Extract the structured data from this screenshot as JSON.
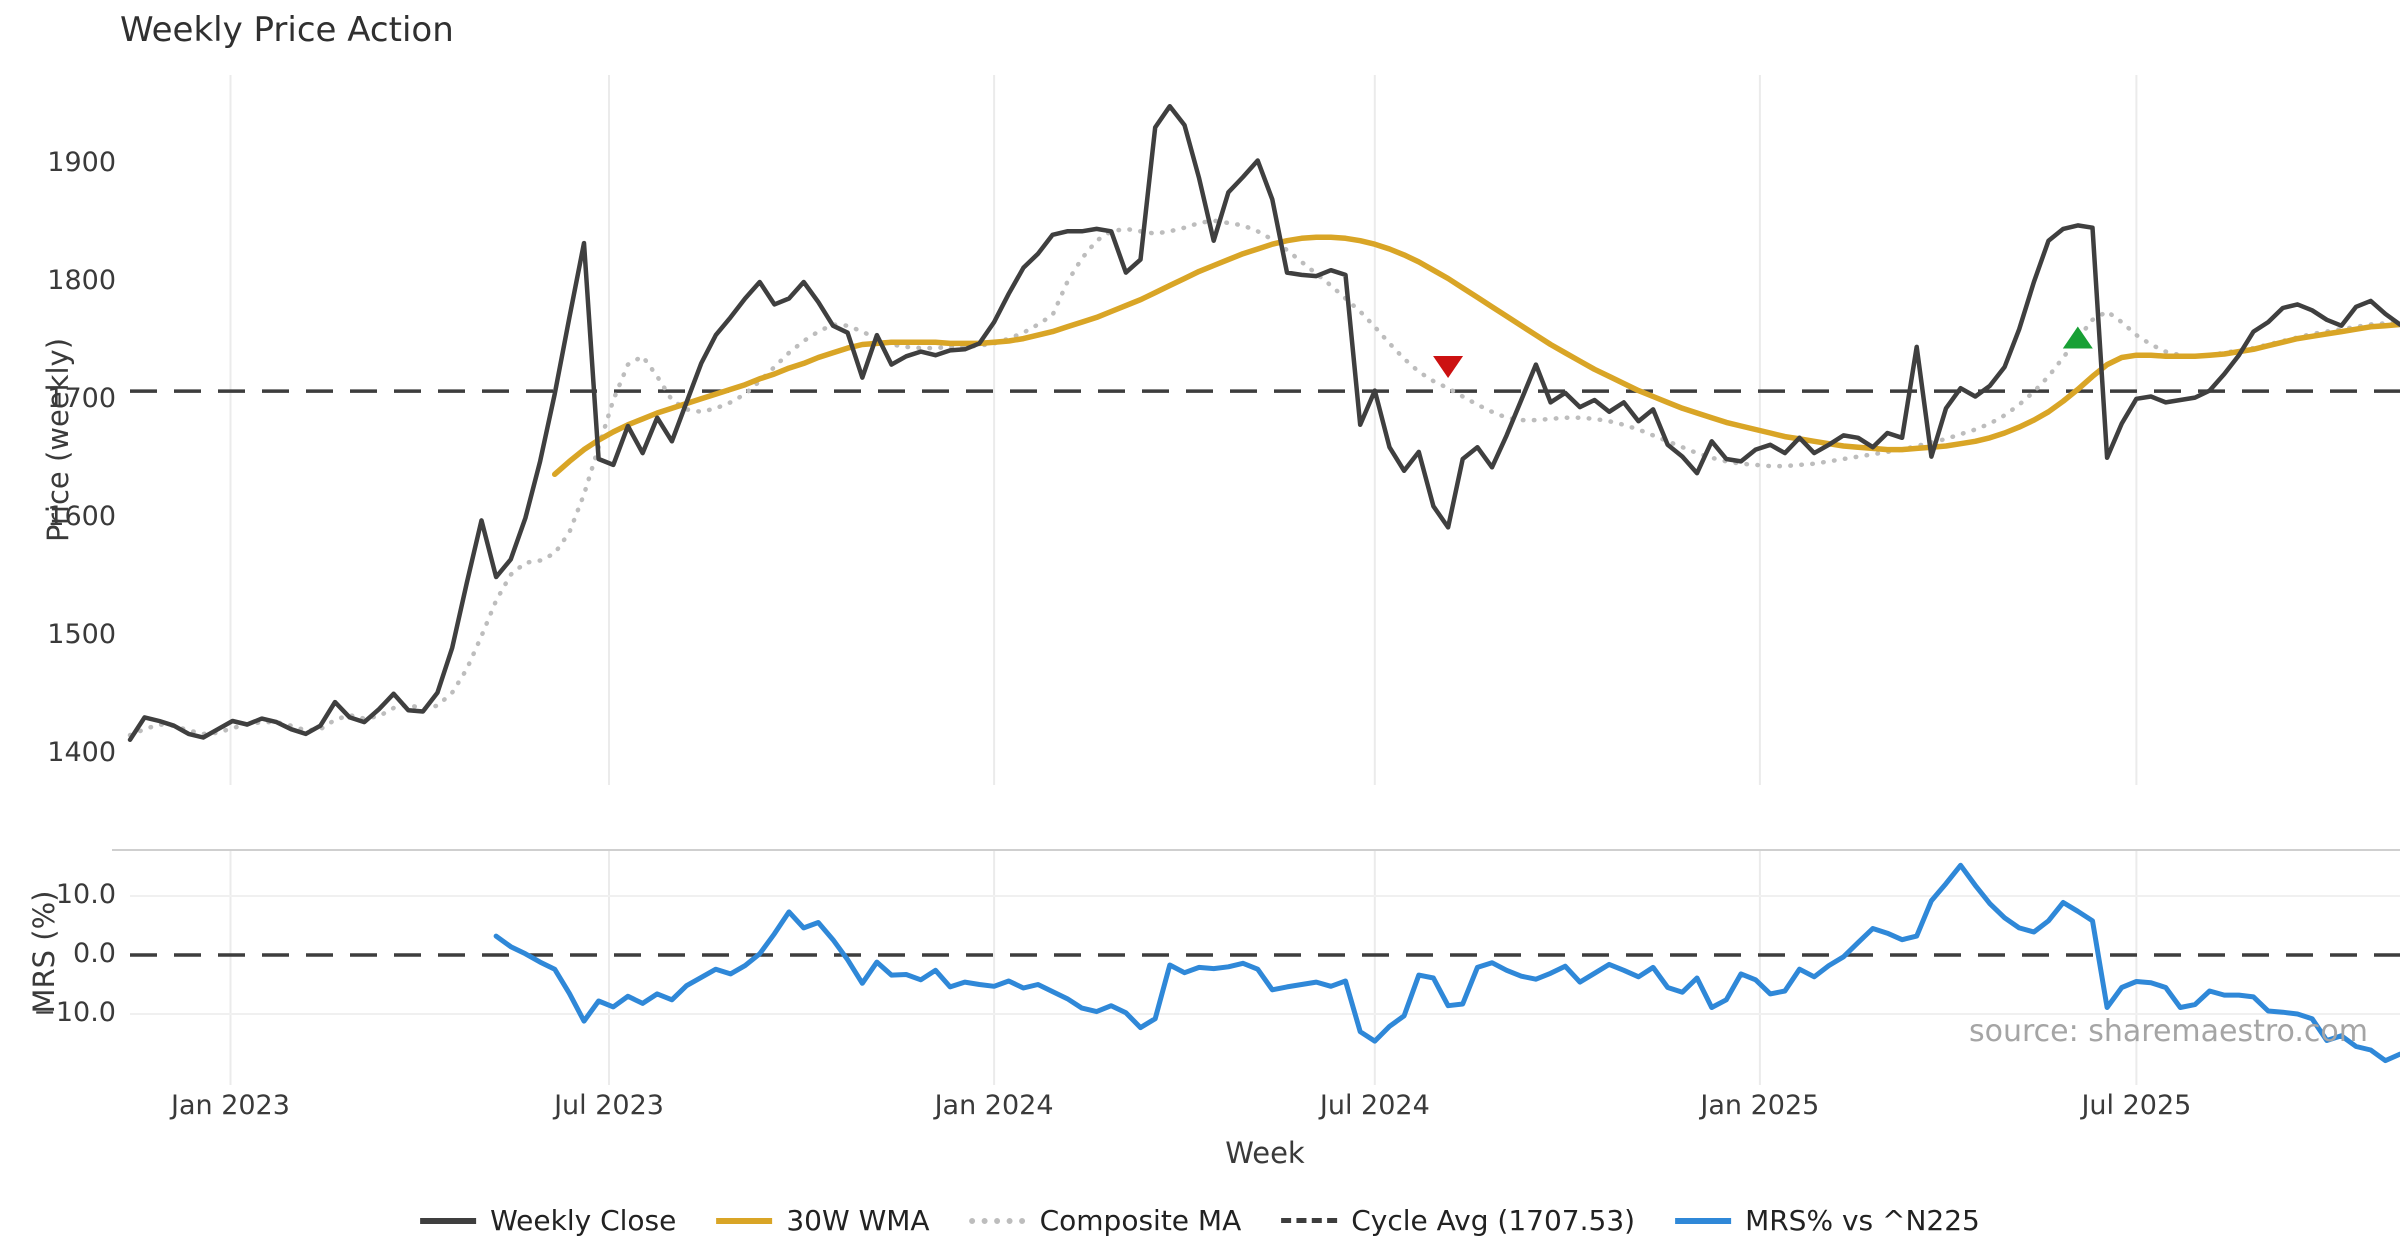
{
  "title": "Weekly Price Action",
  "source": "source: sharemaestro.com",
  "colors": {
    "close": "#3f3f3f",
    "wma": "#d9a526",
    "composite": "#bdbdbd",
    "cycle": "#3d3d3d",
    "mrs": "#2f88d8",
    "marker_down": "#cc1111",
    "marker_up": "#18a035",
    "grid": "#ebebeb",
    "spine": "#cfcfcf",
    "text": "#3a3a3a"
  },
  "legend": [
    {
      "label": "Weekly Close",
      "color": "#3f3f3f",
      "style": "solid"
    },
    {
      "label": "30W WMA",
      "color": "#d9a526",
      "style": "solid"
    },
    {
      "label": "Composite MA",
      "color": "#bdbdbd",
      "style": "dotted"
    },
    {
      "label": "Cycle Avg (1707.53)",
      "color": "#3d3d3d",
      "style": "dashed"
    },
    {
      "label": "MRS% vs ^N225",
      "color": "#2f88d8",
      "style": "solid"
    }
  ],
  "price_axis": {
    "label": "Price (weekly)",
    "ticks": [
      1400,
      1500,
      1600,
      1700,
      1800,
      1900
    ]
  },
  "mrs_axis": {
    "label": "MRS (%)",
    "ticks": [
      {
        "v": 10,
        "label": "10.0"
      },
      {
        "v": 0,
        "label": "0.0"
      },
      {
        "v": -10,
        "label": "−10.0"
      }
    ]
  },
  "x_axis": {
    "label": "Week",
    "ticks": [
      {
        "week": 6.86,
        "label": "Jan 2023"
      },
      {
        "week": 32.71,
        "label": "Jul 2023"
      },
      {
        "week": 59.0,
        "label": "Jan 2024"
      },
      {
        "week": 85.0,
        "label": "Jul 2024"
      },
      {
        "week": 111.29,
        "label": "Jan 2025"
      },
      {
        "week": 137.0,
        "label": "Jul 2025"
      }
    ]
  },
  "chart_data": [
    {
      "type": "line",
      "title": "Weekly Price Action",
      "xlabel": "Week",
      "ylabel": "Price (weekly)",
      "x_unit": "weekly points, Nov 2022 through Nov 2025",
      "weeks_total": 156,
      "ylim": [
        1374,
        1975
      ],
      "y_ticks": [
        1400,
        1500,
        1600,
        1700,
        1800,
        1900
      ],
      "x_tick_labels": [
        "Jan 2023",
        "Jul 2023",
        "Jan 2024",
        "Jul 2024",
        "Jan 2025",
        "Jul 2025"
      ],
      "grid": "vertical-only",
      "cycle_avg": 1707.53,
      "series": [
        {
          "name": "Weekly Close",
          "style": "solid",
          "color": "#3f3f3f",
          "width": 4.5,
          "values": [
            1412,
            1431,
            1428,
            1424,
            1417,
            1414,
            1421,
            1428,
            1425,
            1430,
            1427,
            1421,
            1417,
            1424,
            1444,
            1431,
            1427,
            1438,
            1451,
            1437,
            1436,
            1452,
            1490,
            1545,
            1598,
            1550,
            1565,
            1600,
            1648,
            1705,
            1770,
            1833,
            1650,
            1645,
            1678,
            1655,
            1685,
            1665,
            1698,
            1731,
            1755,
            1770,
            1786,
            1800,
            1781,
            1786,
            1800,
            1783,
            1763,
            1757,
            1719,
            1755,
            1730,
            1737,
            1741,
            1738,
            1742,
            1743,
            1748,
            1766,
            1790,
            1812,
            1824,
            1840,
            1843,
            1843,
            1845,
            1843,
            1808,
            1819,
            1931,
            1949,
            1933,
            1888,
            1835,
            1876,
            1889,
            1903,
            1870,
            1808,
            1806,
            1805,
            1810,
            1806,
            1679,
            1708,
            1660,
            1640,
            1656,
            1610,
            1592,
            1650,
            1660,
            1643,
            1670,
            1700,
            1730,
            1698,
            1706,
            1694,
            1700,
            1690,
            1698,
            1682,
            1692,
            1662,
            1652,
            1638,
            1665,
            1650,
            1648,
            1658,
            1662,
            1655,
            1668,
            1655,
            1662,
            1670,
            1668,
            1660,
            1672,
            1668,
            1745,
            1652,
            1693,
            1710,
            1703,
            1712,
            1728,
            1760,
            1800,
            1835,
            1845,
            1848,
            1846,
            1651,
            1680,
            1701,
            1703,
            1698,
            1700,
            1702,
            1708,
            1722,
            1738,
            1758,
            1766,
            1778,
            1781,
            1776,
            1768,
            1763,
            1779,
            1784,
            1773,
            1764
          ]
        },
        {
          "name": "30W WMA",
          "style": "solid",
          "color": "#d9a526",
          "width": 5.5,
          "values": [
            null,
            null,
            null,
            null,
            null,
            null,
            null,
            null,
            null,
            null,
            null,
            null,
            null,
            null,
            null,
            null,
            null,
            null,
            null,
            null,
            null,
            null,
            null,
            null,
            null,
            null,
            null,
            null,
            null,
            1637,
            1648,
            1658,
            1666,
            1673,
            1679,
            1684,
            1689,
            1693,
            1697,
            1701,
            1705,
            1709,
            1713,
            1718,
            1722,
            1727,
            1731,
            1736,
            1740,
            1744,
            1747,
            1748,
            1749,
            1749,
            1749,
            1749,
            1748,
            1748,
            1748,
            1749,
            1750,
            1752,
            1755,
            1758,
            1762,
            1766,
            1770,
            1775,
            1780,
            1785,
            1791,
            1797,
            1803,
            1809,
            1814,
            1819,
            1824,
            1828,
            1832,
            1835,
            1837,
            1838,
            1838,
            1837,
            1835,
            1832,
            1828,
            1823,
            1817,
            1810,
            1803,
            1795,
            1787,
            1779,
            1771,
            1763,
            1755,
            1747,
            1740,
            1733,
            1726,
            1720,
            1714,
            1708,
            1703,
            1698,
            1693,
            1689,
            1685,
            1681,
            1678,
            1675,
            1672,
            1669,
            1667,
            1665,
            1663,
            1661,
            1660,
            1659,
            1658,
            1658,
            1659,
            1660,
            1661,
            1663,
            1665,
            1668,
            1672,
            1677,
            1683,
            1690,
            1699,
            1709,
            1720,
            1730,
            1736,
            1738,
            1738,
            1737,
            1737,
            1737,
            1738,
            1739,
            1741,
            1743,
            1746,
            1749,
            1752,
            1754,
            1756,
            1758,
            1760,
            1762,
            1763,
            1764
          ]
        },
        {
          "name": "Composite MA",
          "style": "dotted",
          "color": "#bdbdbd",
          "width": 4.5,
          "values": [
            1416,
            1421,
            1425,
            1424,
            1420,
            1417,
            1418,
            1422,
            1425,
            1427,
            1427,
            1424,
            1420,
            1421,
            1429,
            1433,
            1430,
            1432,
            1439,
            1442,
            1438,
            1441,
            1452,
            1472,
            1500,
            1530,
            1552,
            1562,
            1564,
            1570,
            1588,
            1620,
            1660,
            1700,
            1730,
            1737,
            1720,
            1700,
            1692,
            1690,
            1693,
            1698,
            1705,
            1716,
            1728,
            1740,
            1750,
            1758,
            1764,
            1763,
            1758,
            1752,
            1747,
            1745,
            1744,
            1744,
            1745,
            1745,
            1746,
            1748,
            1752,
            1757,
            1764,
            1772,
            1800,
            1820,
            1835,
            1843,
            1845,
            1843,
            1841,
            1843,
            1846,
            1850,
            1852,
            1850,
            1848,
            1843,
            1836,
            1827,
            1817,
            1807,
            1797,
            1786,
            1775,
            1762,
            1748,
            1735,
            1724,
            1716,
            1710,
            1703,
            1696,
            1690,
            1685,
            1683,
            1683,
            1684,
            1685,
            1685,
            1684,
            1682,
            1679,
            1675,
            1670,
            1665,
            1660,
            1655,
            1651,
            1648,
            1646,
            1645,
            1644,
            1644,
            1645,
            1646,
            1648,
            1650,
            1652,
            1654,
            1656,
            1658,
            1661,
            1664,
            1667,
            1671,
            1675,
            1680,
            1687,
            1696,
            1707,
            1720,
            1736,
            1752,
            1768,
            1775,
            1766,
            1755,
            1747,
            1741,
            1738,
            1737,
            1738,
            1740,
            1742,
            1744,
            1747,
            1750,
            1753,
            1756,
            1758,
            1760,
            1762,
            1764,
            1765,
            1766
          ]
        }
      ],
      "markers": [
        {
          "shape": "triangle-down",
          "week": 90,
          "price": 1728,
          "color": "#cc1111",
          "meaning": "sell signal"
        },
        {
          "shape": "triangle-up",
          "week": 133,
          "price": 1753,
          "color": "#18a035",
          "meaning": "buy signal"
        }
      ]
    },
    {
      "type": "line",
      "ylabel": "MRS (%)",
      "ylim": [
        -22,
        17.8
      ],
      "y_ticks": [
        10.0,
        0.0,
        -10.0
      ],
      "zero_line_dashed": true,
      "series": [
        {
          "name": "MRS% vs ^N225",
          "style": "solid",
          "color": "#2f88d8",
          "width": 5,
          "values": [
            null,
            null,
            null,
            null,
            null,
            null,
            null,
            null,
            null,
            null,
            null,
            null,
            null,
            null,
            null,
            null,
            null,
            null,
            null,
            null,
            null,
            null,
            null,
            null,
            null,
            3.2,
            1.4,
            0.2,
            -1.2,
            -2.4,
            -6.5,
            -11.2,
            -7.8,
            -8.8,
            -7.0,
            -8.2,
            -6.6,
            -7.6,
            -5.2,
            -3.8,
            -2.4,
            -3.2,
            -1.8,
            0.2,
            3.6,
            7.3,
            4.6,
            5.5,
            2.6,
            -0.8,
            -4.8,
            -1.2,
            -3.4,
            -3.3,
            -4.2,
            -2.6,
            -5.4,
            -4.6,
            -5.0,
            -5.3,
            -4.4,
            -5.6,
            -5.0,
            -6.2,
            -7.4,
            -9.0,
            -9.6,
            -8.6,
            -9.8,
            -12.3,
            -10.8,
            -1.7,
            -3.0,
            -2.1,
            -2.3,
            -2.0,
            -1.4,
            -2.4,
            -5.9,
            -5.4,
            -5.0,
            -4.6,
            -5.3,
            -4.4,
            -13.0,
            -14.6,
            -12.1,
            -10.3,
            -3.4,
            -3.9,
            -8.6,
            -8.3,
            -2.1,
            -1.3,
            -2.6,
            -3.6,
            -4.1,
            -3.1,
            -1.9,
            -4.6,
            -3.1,
            -1.6,
            -2.6,
            -3.7,
            -2.1,
            -5.5,
            -6.3,
            -3.9,
            -8.9,
            -7.6,
            -3.2,
            -4.2,
            -6.6,
            -6.1,
            -2.4,
            -3.7,
            -1.8,
            -0.3,
            2.1,
            4.5,
            3.7,
            2.6,
            3.2,
            9.2,
            12.1,
            15.2,
            11.8,
            8.7,
            6.3,
            4.6,
            3.9,
            5.8,
            8.9,
            7.4,
            5.8,
            -8.9,
            -5.5,
            -4.5,
            -4.7,
            -5.5,
            -8.9,
            -8.4,
            -6.1,
            -6.8,
            -6.8,
            -7.1,
            -9.5,
            -9.7,
            -10.0,
            -10.8,
            -14.5,
            -13.7,
            -15.5,
            -16.1,
            -17.9,
            -16.8
          ]
        }
      ]
    }
  ]
}
